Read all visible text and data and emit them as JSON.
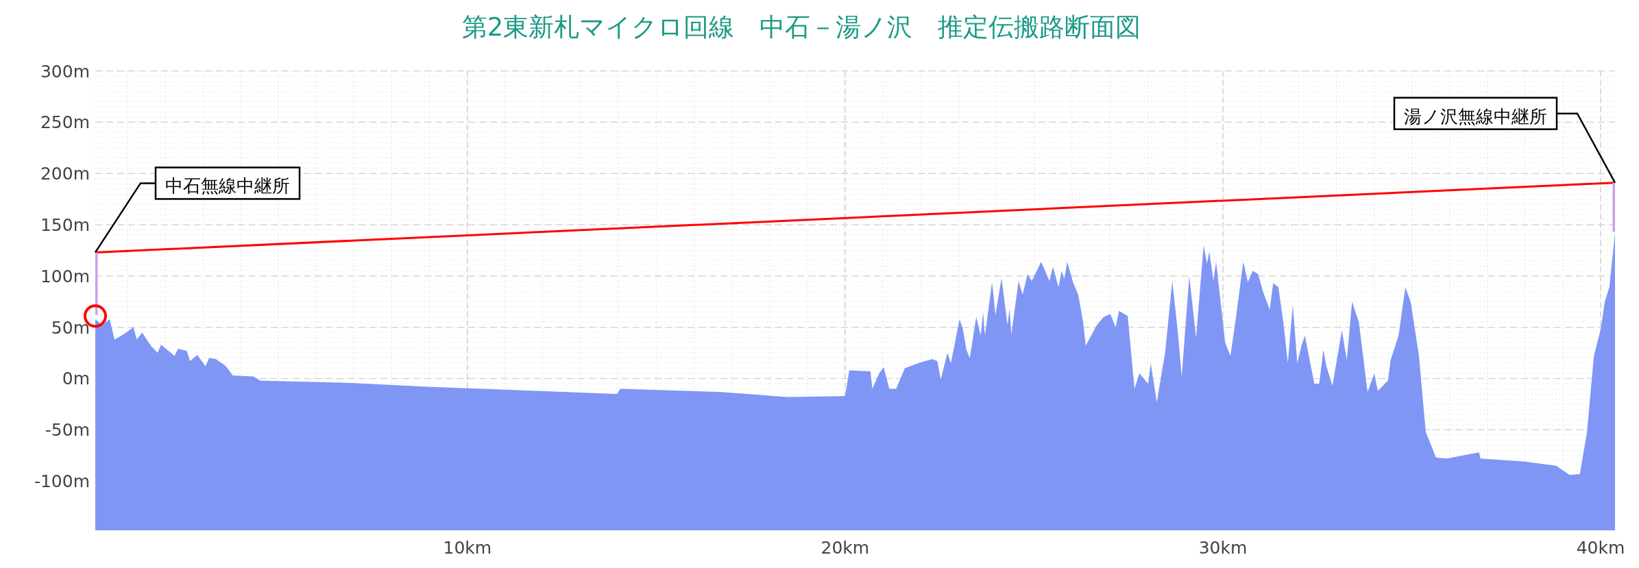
{
  "chart_data": {
    "type": "area",
    "title": "第2東新札マイクロ回線　中石－湯ノ沢　推定伝搬路断面図",
    "xlim": [
      0.15,
      40.38
    ],
    "ylim": [
      -148,
      300
    ],
    "xticks": [
      {
        "value": 10,
        "label": "10km"
      },
      {
        "value": 20,
        "label": "20km"
      },
      {
        "value": 30,
        "label": "30km"
      },
      {
        "value": 40,
        "label": "40km"
      }
    ],
    "yticks": [
      {
        "value": -100,
        "label": "-100m"
      },
      {
        "value": -50,
        "label": "-50m"
      },
      {
        "value": 0,
        "label": "0m"
      },
      {
        "value": 50,
        "label": "50m"
      },
      {
        "value": 100,
        "label": "100m"
      },
      {
        "value": 150,
        "label": "150m"
      },
      {
        "value": 200,
        "label": "200m"
      },
      {
        "value": 250,
        "label": "250m"
      },
      {
        "value": 300,
        "label": "300m"
      }
    ],
    "grid": true,
    "series": [
      {
        "color": "#7f96f5",
        "x": [
          0.15,
          0.34,
          0.53,
          0.66,
          0.89,
          1.16,
          1.25,
          1.39,
          1.62,
          1.8,
          1.89,
          2.25,
          2.34,
          2.57,
          2.66,
          2.85,
          3.07,
          3.16,
          3.34,
          3.61,
          3.79,
          4.34,
          4.52,
          6.7,
          8.97,
          11.85,
          13.96,
          14.05,
          16.68,
          18.49,
          20.0,
          20.11,
          20.67,
          20.72,
          20.9,
          21.02,
          21.17,
          21.35,
          21.58,
          21.94,
          22.3,
          22.44,
          22.53,
          22.71,
          22.8,
          23.03,
          23.12,
          23.21,
          23.3,
          23.47,
          23.59,
          23.65,
          23.7,
          23.89,
          23.98,
          24.14,
          24.3,
          24.35,
          24.4,
          24.59,
          24.7,
          24.83,
          24.94,
          25.19,
          25.41,
          25.5,
          25.65,
          25.73,
          25.8,
          25.88,
          26.03,
          26.17,
          26.3,
          26.37,
          26.66,
          26.84,
          27.02,
          27.16,
          27.25,
          27.48,
          27.66,
          27.79,
          28.02,
          28.09,
          28.25,
          28.47,
          28.66,
          28.8,
          28.91,
          29.11,
          29.29,
          29.49,
          29.58,
          29.64,
          29.75,
          29.82,
          30.06,
          30.2,
          30.34,
          30.54,
          30.66,
          30.79,
          30.93,
          31.06,
          31.24,
          31.33,
          31.47,
          31.6,
          31.72,
          31.85,
          31.97,
          32.08,
          32.17,
          32.42,
          32.55,
          32.66,
          32.74,
          32.9,
          33.15,
          33.28,
          33.42,
          33.6,
          33.83,
          34.01,
          34.1,
          34.37,
          34.44,
          34.65,
          34.83,
          34.97,
          35.19,
          35.37,
          35.64,
          35.92,
          36.78,
          36.82,
          38.0,
          38.82,
          39.18,
          39.45,
          39.64,
          39.82,
          40.0,
          40.11,
          40.23,
          40.38
        ],
        "values": [
          58,
          52,
          58,
          38,
          43,
          50,
          38,
          45,
          32,
          25,
          33,
          22,
          29,
          27,
          17,
          23,
          12,
          20,
          19,
          12,
          3,
          2,
          -2,
          -4,
          -8,
          -12,
          -15,
          -10,
          -13,
          -18,
          -17,
          8,
          7,
          -10,
          5,
          11,
          -10,
          -10,
          10,
          15,
          19,
          17,
          -1,
          25,
          15,
          58,
          48,
          28,
          20,
          60,
          42,
          65,
          42,
          94,
          62,
          98,
          52,
          68,
          43,
          95,
          82,
          102,
          95,
          114,
          95,
          109,
          89,
          105,
          97,
          114,
          94,
          82,
          55,
          32,
          52,
          60,
          63,
          50,
          66,
          61,
          -10,
          5,
          -5,
          15,
          -23,
          25,
          95,
          48,
          2,
          100,
          40,
          130,
          112,
          124,
          95,
          114,
          35,
          22,
          58,
          114,
          94,
          105,
          102,
          85,
          67,
          93,
          89,
          55,
          15,
          72,
          15,
          32,
          42,
          -5,
          -5,
          28,
          12,
          -7,
          47,
          18,
          75,
          55,
          -13,
          5,
          -12,
          -2,
          18,
          42,
          89,
          75,
          22,
          -52,
          -77,
          -78,
          -72,
          -78,
          -81,
          -85,
          -94,
          -93,
          -52,
          22,
          48,
          75,
          89,
          142
        ]
      },
      {
        "type": "line",
        "color": "#ff0000",
        "x": [
          0.15,
          40.38
        ],
        "values": [
          123,
          191
        ]
      },
      {
        "type": "line",
        "color": "#c9a0ec",
        "x": [
          0.15,
          0.15
        ],
        "values": [
          62,
          123
        ]
      },
      {
        "type": "line",
        "color": "#c9a0ec",
        "x": [
          40.38,
          40.38
        ],
        "values": [
          143,
          191
        ]
      },
      {
        "type": "scatter",
        "color": "#ff0000",
        "marker": "circle",
        "x": [
          0.15
        ],
        "values": [
          61
        ]
      }
    ],
    "annotations": [
      {
        "text": "中石無線中継所",
        "x": 0.15,
        "y": 123
      },
      {
        "text": "湯ノ沢無線中継所",
        "x": 40.38,
        "y": 191
      }
    ]
  }
}
